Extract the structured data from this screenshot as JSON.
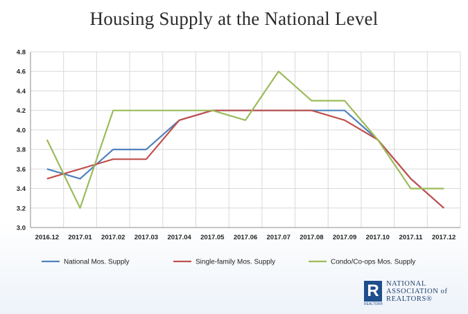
{
  "title": "Housing Supply at the National Level",
  "chart_data": {
    "type": "line",
    "categories": [
      "2016.12",
      "2017.01",
      "2017.02",
      "2017.03",
      "2017.04",
      "2017.05",
      "2017.06",
      "2017.07",
      "2017.08",
      "2017.09",
      "2017.10",
      "2017.11",
      "2017.12"
    ],
    "y_ticks": [
      "3.0",
      "3.2",
      "3.4",
      "3.6",
      "3.8",
      "4.0",
      "4.2",
      "4.4",
      "4.6",
      "4.8"
    ],
    "ylim": [
      3.0,
      4.8
    ],
    "grid": true,
    "legend_position": "bottom",
    "series": [
      {
        "name": "National Mos. Supply",
        "color": "#4f81bd",
        "values": [
          3.6,
          3.5,
          3.8,
          3.8,
          4.1,
          4.2,
          4.2,
          4.2,
          4.2,
          4.2,
          3.9,
          3.5,
          3.2
        ]
      },
      {
        "name": "Single-family Mos. Supply",
        "color": "#c0504d",
        "values": [
          3.5,
          3.6,
          3.7,
          3.7,
          4.1,
          4.2,
          4.2,
          4.2,
          4.2,
          4.1,
          3.9,
          3.5,
          3.2
        ]
      },
      {
        "name": "Condo/Co-ops Mos. Supply",
        "color": "#9bbb59",
        "values": [
          3.9,
          3.2,
          4.2,
          4.2,
          4.2,
          4.2,
          4.1,
          4.6,
          4.3,
          4.3,
          3.9,
          3.4,
          3.4
        ]
      }
    ]
  },
  "logo": {
    "mark": "R",
    "mark_caption": "REALTOR®",
    "text": "NATIONAL\nASSOCIATION of\nREALTORS®"
  }
}
